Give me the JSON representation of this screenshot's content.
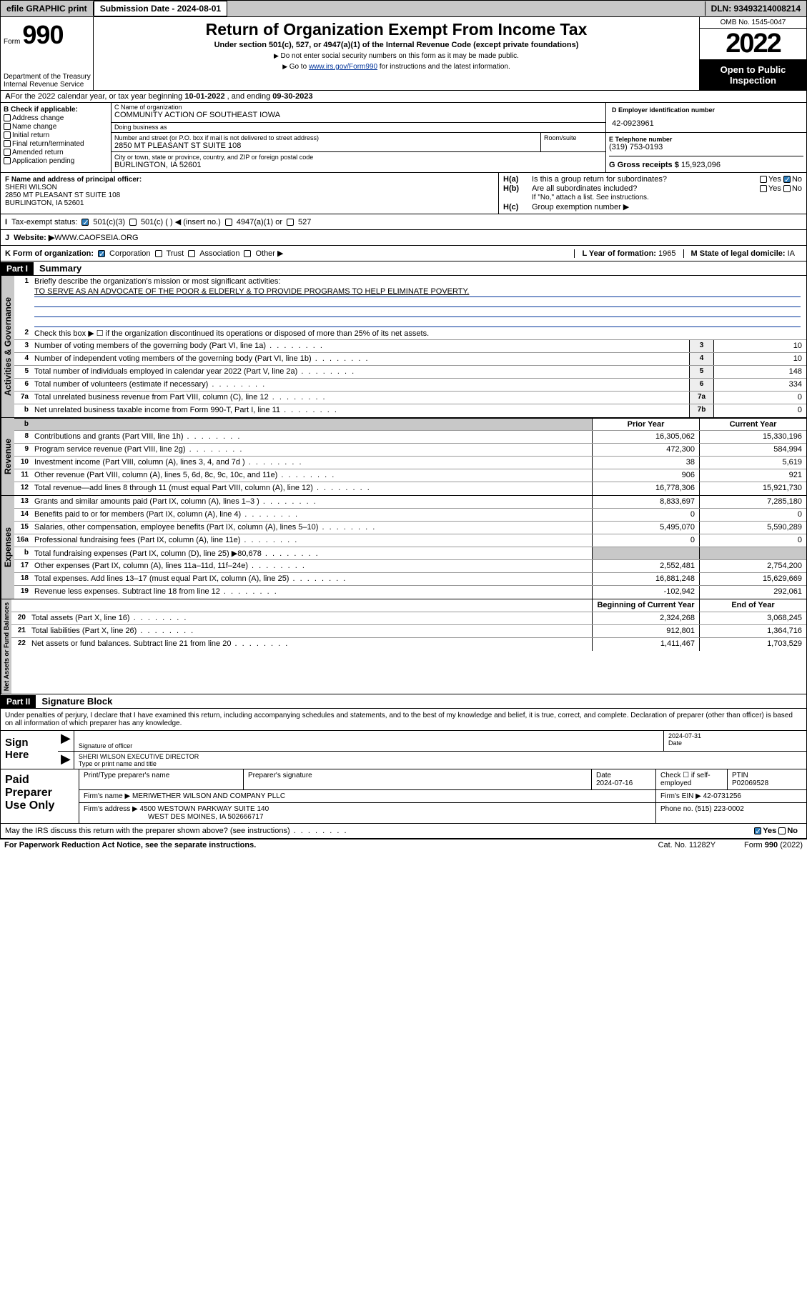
{
  "topbar": {
    "efile": "efile GRAPHIC print",
    "submission_label": "Submission Date - 2024-08-01",
    "dln_label": "DLN: 93493214008214"
  },
  "header": {
    "form_prefix": "Form",
    "form_number": "990",
    "dept": "Department of the Treasury\nInternal Revenue Service",
    "title": "Return of Organization Exempt From Income Tax",
    "subtitle": "Under section 501(c), 527, or 4947(a)(1) of the Internal Revenue Code (except private foundations)",
    "note1": "Do not enter social security numbers on this form as it may be made public.",
    "note2_pre": "Go to ",
    "note2_link": "www.irs.gov/Form990",
    "note2_post": " for instructions and the latest information.",
    "omb": "OMB No. 1545-0047",
    "year": "2022",
    "inspect": "Open to Public Inspection"
  },
  "row_a": {
    "text_pre": "For the 2022 calendar year, or tax year beginning ",
    "begin": "10-01-2022",
    "mid": " , and ending ",
    "end": "09-30-2023"
  },
  "box_b": {
    "label": "B Check if applicable:",
    "opts": [
      "Address change",
      "Name change",
      "Initial return",
      "Final return/terminated",
      "Amended return",
      "Application pending"
    ]
  },
  "box_c": {
    "name_label": "C Name of organization",
    "name": "COMMUNITY ACTION OF SOUTHEAST IOWA",
    "dba_label": "Doing business as",
    "dba": "",
    "addr_label": "Number and street (or P.O. box if mail is not delivered to street address)",
    "suite_label": "Room/suite",
    "addr": "2850 MT PLEASANT ST SUITE 108",
    "city_label": "City or town, state or province, country, and ZIP or foreign postal code",
    "city": "BURLINGTON, IA  52601"
  },
  "box_d": {
    "label": "D Employer identification number",
    "val": "42-0923961"
  },
  "box_e": {
    "label": "E Telephone number",
    "val": "(319) 753-0193"
  },
  "box_g": {
    "label": "G Gross receipts $ ",
    "val": "15,923,096"
  },
  "box_f": {
    "label": "F Name and address of principal officer:",
    "name": "SHERI WILSON",
    "addr": "2850 MT PLEASANT ST SUITE 108\nBURLINGTON, IA  52601"
  },
  "box_h": {
    "ha_label": "H(a)",
    "ha_text": "Is this a group return for subordinates?",
    "ha_yes": "Yes",
    "ha_no": "No",
    "hb_label": "H(b)",
    "hb_text": "Are all subordinates included?",
    "hb_note": "If \"No,\" attach a list. See instructions.",
    "hc_label": "H(c)",
    "hc_text": "Group exemption number ▶"
  },
  "row_i": {
    "label": "Tax-exempt status:",
    "opts": [
      "501(c)(3)",
      "501(c) (  ) ◀ (insert no.)",
      "4947(a)(1) or",
      "527"
    ]
  },
  "row_j": {
    "label": "Website: ▶",
    "val": "WWW.CAOFSEIA.ORG"
  },
  "row_k": {
    "label": "K Form of organization:",
    "opts": [
      "Corporation",
      "Trust",
      "Association",
      "Other ▶"
    ],
    "year_label": "L Year of formation: ",
    "year": "1965",
    "state_label": "M State of legal domicile: ",
    "state": "IA"
  },
  "part1": {
    "header": "Part I",
    "title": "Summary",
    "line1_label": "Briefly describe the organization's mission or most significant activities:",
    "mission": "TO SERVE AS AN ADVOCATE OF THE POOR & ELDERLY & TO PROVIDE PROGRAMS TO HELP ELIMINATE POVERTY.",
    "line2": "Check this box ▶ ☐  if the organization discontinued its operations or disposed of more than 25% of its net assets.",
    "vtab_gov": "Activities & Governance",
    "vtab_rev": "Revenue",
    "vtab_exp": "Expenses",
    "vtab_net": "Net Assets or Fund Balances",
    "rows_gov": [
      {
        "n": "3",
        "t": "Number of voting members of the governing body (Part VI, line 1a)",
        "box": "3",
        "v": "10"
      },
      {
        "n": "4",
        "t": "Number of independent voting members of the governing body (Part VI, line 1b)",
        "box": "4",
        "v": "10"
      },
      {
        "n": "5",
        "t": "Total number of individuals employed in calendar year 2022 (Part V, line 2a)",
        "box": "5",
        "v": "148"
      },
      {
        "n": "6",
        "t": "Total number of volunteers (estimate if necessary)",
        "box": "6",
        "v": "334"
      },
      {
        "n": "7a",
        "t": "Total unrelated business revenue from Part VIII, column (C), line 12",
        "box": "7a",
        "v": "0"
      },
      {
        "n": "b",
        "t": "Net unrelated business taxable income from Form 990-T, Part I, line 11",
        "box": "7b",
        "v": "0"
      }
    ],
    "col_py": "Prior Year",
    "col_cy": "Current Year",
    "rows_rev": [
      {
        "n": "8",
        "t": "Contributions and grants (Part VIII, line 1h)",
        "py": "16,305,062",
        "cy": "15,330,196"
      },
      {
        "n": "9",
        "t": "Program service revenue (Part VIII, line 2g)",
        "py": "472,300",
        "cy": "584,994"
      },
      {
        "n": "10",
        "t": "Investment income (Part VIII, column (A), lines 3, 4, and 7d )",
        "py": "38",
        "cy": "5,619"
      },
      {
        "n": "11",
        "t": "Other revenue (Part VIII, column (A), lines 5, 6d, 8c, 9c, 10c, and 11e)",
        "py": "906",
        "cy": "921"
      },
      {
        "n": "12",
        "t": "Total revenue—add lines 8 through 11 (must equal Part VIII, column (A), line 12)",
        "py": "16,778,306",
        "cy": "15,921,730"
      }
    ],
    "rows_exp": [
      {
        "n": "13",
        "t": "Grants and similar amounts paid (Part IX, column (A), lines 1–3 )",
        "py": "8,833,697",
        "cy": "7,285,180"
      },
      {
        "n": "14",
        "t": "Benefits paid to or for members (Part IX, column (A), line 4)",
        "py": "0",
        "cy": "0"
      },
      {
        "n": "15",
        "t": "Salaries, other compensation, employee benefits (Part IX, column (A), lines 5–10)",
        "py": "5,495,070",
        "cy": "5,590,289"
      },
      {
        "n": "16a",
        "t": "Professional fundraising fees (Part IX, column (A), line 11e)",
        "py": "0",
        "cy": "0"
      },
      {
        "n": "b",
        "t": "Total fundraising expenses (Part IX, column (D), line 25) ▶80,678",
        "py": "",
        "cy": "",
        "shade": true
      },
      {
        "n": "17",
        "t": "Other expenses (Part IX, column (A), lines 11a–11d, 11f–24e)",
        "py": "2,552,481",
        "cy": "2,754,200"
      },
      {
        "n": "18",
        "t": "Total expenses. Add lines 13–17 (must equal Part IX, column (A), line 25)",
        "py": "16,881,248",
        "cy": "15,629,669"
      },
      {
        "n": "19",
        "t": "Revenue less expenses. Subtract line 18 from line 12",
        "py": "-102,942",
        "cy": "292,061"
      }
    ],
    "col_boy": "Beginning of Current Year",
    "col_eoy": "End of Year",
    "rows_net": [
      {
        "n": "20",
        "t": "Total assets (Part X, line 16)",
        "py": "2,324,268",
        "cy": "3,068,245"
      },
      {
        "n": "21",
        "t": "Total liabilities (Part X, line 26)",
        "py": "912,801",
        "cy": "1,364,716"
      },
      {
        "n": "22",
        "t": "Net assets or fund balances. Subtract line 21 from line 20",
        "py": "1,411,467",
        "cy": "1,703,529"
      }
    ]
  },
  "part2": {
    "header": "Part II",
    "title": "Signature Block",
    "declare": "Under penalties of perjury, I declare that I have examined this return, including accompanying schedules and statements, and to the best of my knowledge and belief, it is true, correct, and complete. Declaration of preparer (other than officer) is based on all information of which preparer has any knowledge."
  },
  "sign": {
    "label": "Sign Here",
    "sig_label": "Signature of officer",
    "date_label": "Date",
    "date": "2024-07-31",
    "name": "SHERI WILSON  EXECUTIVE DIRECTOR",
    "name_label": "Type or print name and title"
  },
  "prep": {
    "label": "Paid Preparer Use Only",
    "h1": "Print/Type preparer's name",
    "h2": "Preparer's signature",
    "h3": "Date",
    "date": "2024-07-16",
    "h4": "Check ☐ if self-employed",
    "h5": "PTIN",
    "ptin": "P02069528",
    "firm_label": "Firm's name    ▶",
    "firm": "MERIWETHER WILSON AND COMPANY PLLC",
    "ein_label": "Firm's EIN ▶",
    "ein": "42-0731256",
    "addr_label": "Firm's address ▶",
    "addr1": "4500 WESTOWN PARKWAY SUITE 140",
    "addr2": "WEST DES MOINES, IA  502666717",
    "phone_label": "Phone no.",
    "phone": "(515) 223-0002"
  },
  "discuss": {
    "text": "May the IRS discuss this return with the preparer shown above? (see instructions)",
    "yes": "Yes",
    "no": "No"
  },
  "footer": {
    "left": "For Paperwork Reduction Act Notice, see the separate instructions.",
    "mid": "Cat. No. 11282Y",
    "right": "Form 990 (2022)"
  }
}
